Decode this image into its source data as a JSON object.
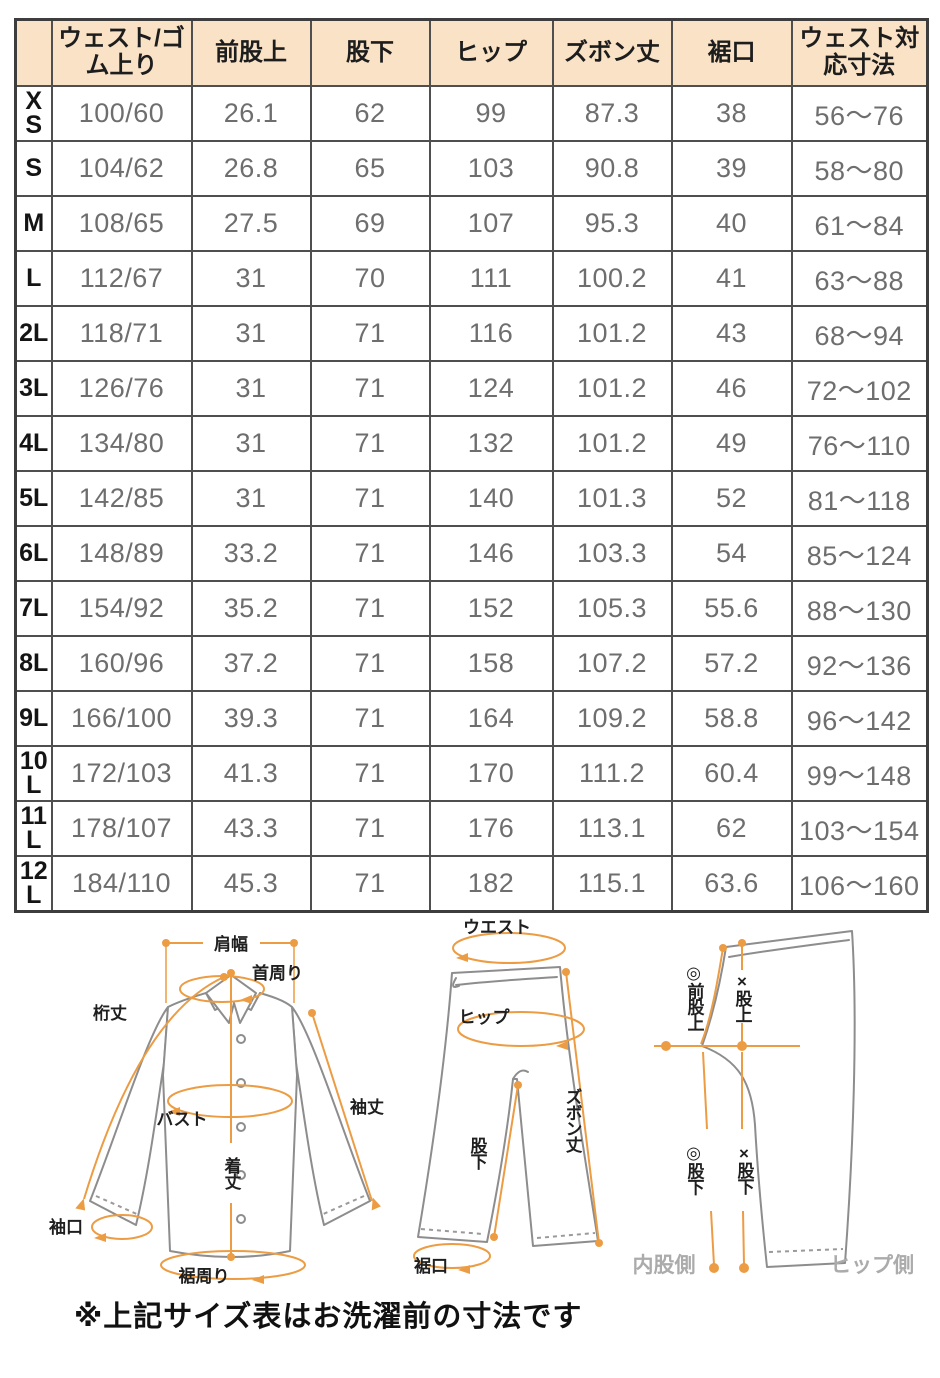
{
  "colors": {
    "header_bg": "#f9e2c6",
    "table_border": "#4f4f4f",
    "data_text": "#6e6e6e",
    "diagram_orange": "#ec9c43",
    "garment_gray": "#8d8d8d",
    "side_label_gray": "#ababab"
  },
  "size_chart": {
    "headers": [
      "",
      "ウェスト/ゴム上り",
      "前股上",
      "股下",
      "ヒップ",
      "ズボン丈",
      "裾口",
      "ウェスト対応寸法"
    ],
    "rows": [
      {
        "size": "XS",
        "values": [
          "100/60",
          "26.1",
          "62",
          "99",
          "87.3",
          "38",
          "56〜76"
        ]
      },
      {
        "size": "S",
        "values": [
          "104/62",
          "26.8",
          "65",
          "103",
          "90.8",
          "39",
          "58〜80"
        ]
      },
      {
        "size": "M",
        "values": [
          "108/65",
          "27.5",
          "69",
          "107",
          "95.3",
          "40",
          "61〜84"
        ]
      },
      {
        "size": "L",
        "values": [
          "112/67",
          "31",
          "70",
          "111",
          "100.2",
          "41",
          "63〜88"
        ]
      },
      {
        "size": "2L",
        "values": [
          "118/71",
          "31",
          "71",
          "116",
          "101.2",
          "43",
          "68〜94"
        ]
      },
      {
        "size": "3L",
        "values": [
          "126/76",
          "31",
          "71",
          "124",
          "101.2",
          "46",
          "72〜102"
        ]
      },
      {
        "size": "4L",
        "values": [
          "134/80",
          "31",
          "71",
          "132",
          "101.2",
          "49",
          "76〜110"
        ]
      },
      {
        "size": "5L",
        "values": [
          "142/85",
          "31",
          "71",
          "140",
          "101.3",
          "52",
          "81〜118"
        ]
      },
      {
        "size": "6L",
        "values": [
          "148/89",
          "33.2",
          "71",
          "146",
          "103.3",
          "54",
          "85〜124"
        ]
      },
      {
        "size": "7L",
        "values": [
          "154/92",
          "35.2",
          "71",
          "152",
          "105.3",
          "55.6",
          "88〜130"
        ]
      },
      {
        "size": "8L",
        "values": [
          "160/96",
          "37.2",
          "71",
          "158",
          "107.2",
          "57.2",
          "92〜136"
        ]
      },
      {
        "size": "9L",
        "values": [
          "166/100",
          "39.3",
          "71",
          "164",
          "109.2",
          "58.8",
          "96〜142"
        ]
      },
      {
        "size": "10L",
        "values": [
          "172/103",
          "41.3",
          "71",
          "170",
          "111.2",
          "60.4",
          "99〜148"
        ]
      },
      {
        "size": "11L",
        "values": [
          "178/107",
          "43.3",
          "71",
          "176",
          "113.1",
          "62",
          "103〜154"
        ]
      },
      {
        "size": "12L",
        "values": [
          "184/110",
          "45.3",
          "71",
          "182",
          "115.1",
          "63.6",
          "106〜160"
        ]
      }
    ]
  },
  "diagram": {
    "shirt": {
      "shoulder_width": "肩幅",
      "neck_girth": "首周り",
      "sleeve_reach": "桁丈",
      "bust": "バスト",
      "body_length": "着丈",
      "sleeve_length": "袖丈",
      "cuff_opening": "袖口",
      "hem_girth": "裾周り"
    },
    "pants_front": {
      "waist": "ウエスト",
      "hip": "ヒップ",
      "pants_length": "ズボン丈",
      "inseam": "股下",
      "hem_opening": "裾口"
    },
    "pants_side": {
      "front_rise": "◎前股上",
      "rise": "×股上",
      "inseam_inner": "◎股下",
      "inseam_hip": "×股下",
      "inner_thigh_side": "内股側",
      "hip_side": "ヒップ側"
    }
  },
  "footnote": "※上記サイズ表はお洗濯前の寸法です"
}
